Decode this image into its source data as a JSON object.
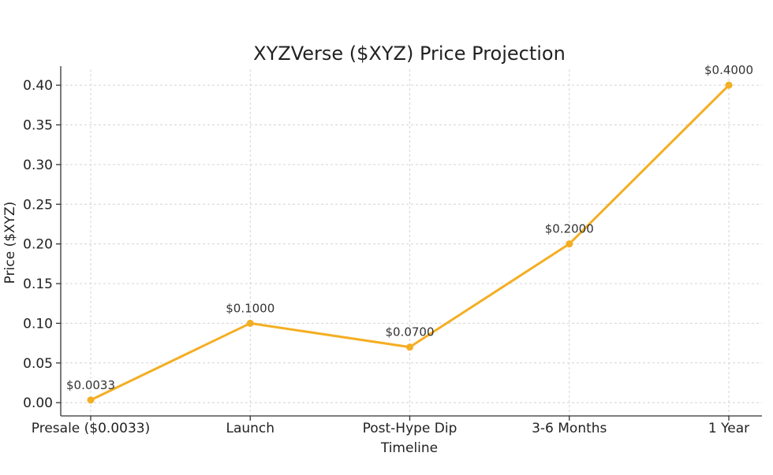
{
  "chart_data": {
    "type": "line",
    "title": "XYZVerse ($XYZ) Price Projection",
    "xlabel": "Timeline",
    "ylabel": "Price ($XYZ)",
    "categories": [
      "Presale ($0.0033)",
      "Launch",
      "Post-Hype Dip",
      "3-6 Months",
      "1 Year"
    ],
    "values": [
      0.0033,
      0.1,
      0.07,
      0.2,
      0.4
    ],
    "data_labels": [
      "$0.0033",
      "$0.1000",
      "$0.0700",
      "$0.2000",
      "$0.4000"
    ],
    "yticks": [
      0.0,
      0.05,
      0.1,
      0.15,
      0.2,
      0.25,
      0.3,
      0.35,
      0.4
    ],
    "ytick_labels": [
      "0.00",
      "0.05",
      "0.10",
      "0.15",
      "0.20",
      "0.25",
      "0.30",
      "0.35",
      "0.40"
    ],
    "ylim": [
      -0.0167,
      0.42
    ],
    "grid": true,
    "line_color": "#f4ae23",
    "marker_color": "#f4ae23"
  }
}
